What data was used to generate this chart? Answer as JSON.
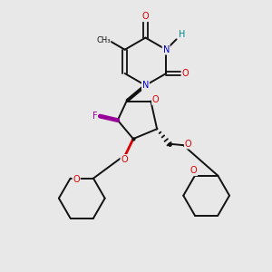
{
  "bg_color": "#e8e8e8",
  "bond_color": "#111111",
  "atom_colors": {
    "O": "#dd0000",
    "N": "#0000cc",
    "H": "#008888",
    "F": "#990099",
    "C": "#111111"
  },
  "figsize": [
    3.0,
    3.0
  ],
  "dpi": 100
}
